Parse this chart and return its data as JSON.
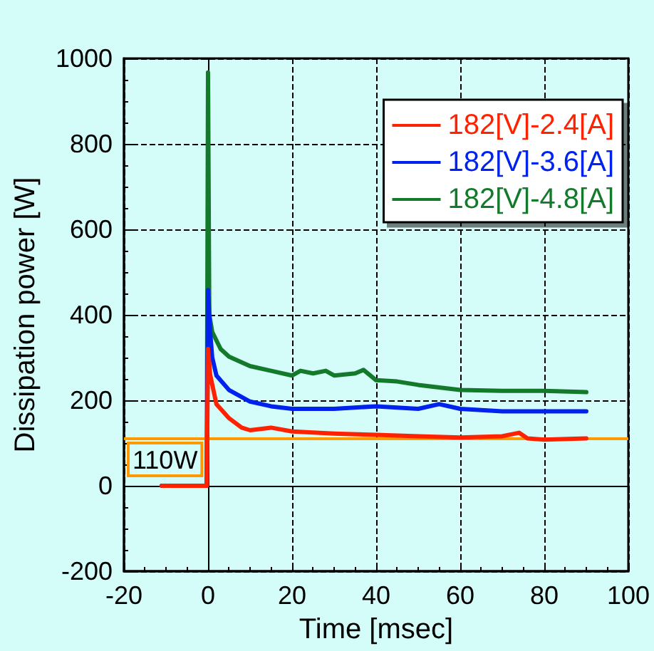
{
  "chart_data": {
    "type": "line",
    "xlabel": "Time [msec]",
    "ylabel": "Dissipation power [W]",
    "xlim": [
      -20,
      100
    ],
    "xticks": [
      -20,
      0,
      20,
      40,
      60,
      80,
      100
    ],
    "ylim": [
      -200,
      1000
    ],
    "yticks": [
      -200,
      0,
      200,
      400,
      600,
      800,
      1000
    ],
    "grid": true,
    "legend": "top right",
    "marker": "none",
    "line_style": "solid",
    "series": [
      {
        "name": "182[V]-2.4[A]",
        "color": "#ff2200",
        "x": [
          -11,
          -0.3,
          0,
          0.5,
          2,
          3,
          5,
          8,
          10,
          15,
          20,
          30,
          40,
          50,
          60,
          70,
          74,
          76,
          80,
          90
        ],
        "values": [
          0,
          0,
          320,
          260,
          191,
          180,
          158,
          136,
          130,
          136,
          127,
          122,
          119,
          116,
          113,
          116,
          124,
          111,
          108,
          111
        ]
      },
      {
        "name": "182[V]-3.6[A]",
        "color": "#0022ee",
        "x": [
          -11,
          -0.3,
          0,
          0.5,
          1,
          2,
          5,
          10,
          15,
          20,
          30,
          40,
          50,
          55,
          60,
          70,
          80,
          90
        ],
        "values": [
          0,
          0,
          458,
          360,
          300,
          258,
          224,
          197,
          186,
          180,
          180,
          186,
          180,
          191,
          180,
          174,
          174,
          174
        ]
      },
      {
        "name": "182[V]-4.8[A]",
        "color": "#127a2a",
        "x": [
          -11,
          -0.3,
          0,
          0.3,
          1,
          3,
          5,
          10,
          15,
          20,
          22,
          25,
          28,
          30,
          35,
          37,
          40,
          45,
          50,
          55,
          60,
          70,
          80,
          90
        ],
        "values": [
          0,
          0,
          967,
          400,
          360,
          320,
          302,
          280,
          269,
          258,
          269,
          263,
          269,
          258,
          263,
          271,
          247,
          244,
          236,
          230,
          224,
          222,
          222,
          219
        ]
      }
    ],
    "ref_lines": [
      {
        "axis": "y",
        "value": 110,
        "label": "110W",
        "color": "#ff9900"
      }
    ]
  }
}
